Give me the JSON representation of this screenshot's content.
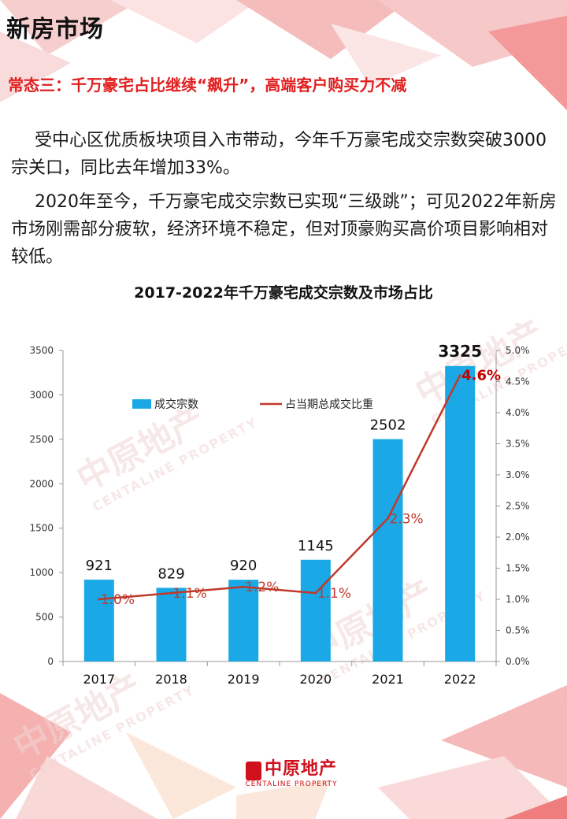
{
  "header": {
    "title": "新房市场",
    "subtitle": "常态三：千万豪宅占比继续“飙升”，高端客户购买力不减"
  },
  "body": {
    "paragraph1": "受中心区优质板块项目入市带动，今年千万豪宅成交宗数突破3000宗关口，同比去年增加33%。",
    "paragraph2": "2020年至今，千万豪宅成交宗数已实现“三级跳”；可见2022年新房市场刚需部分疲软，经济环境不稳定，但对顶豪购买高价项目影响相对较低。"
  },
  "watermark": {
    "cn": "中原地产",
    "en": "CENTALINE PROPERTY"
  },
  "footer": {
    "logo_cn": "中原地产",
    "logo_en": "CENTALINE PROPERTY"
  },
  "colors": {
    "bar": "#1aa9e6",
    "line": "#c0392b",
    "accent_red": "#e02020"
  },
  "chart_data": {
    "type": "bar",
    "title": "2017-2022年千万豪宅成交宗数及市场占比",
    "categories": [
      "2017",
      "2018",
      "2019",
      "2020",
      "2021",
      "2022"
    ],
    "series": [
      {
        "name": "成交宗数",
        "type": "bar",
        "axis": "left",
        "values": [
          921,
          829,
          920,
          1145,
          2502,
          3325
        ],
        "labels": [
          "921",
          "829",
          "920",
          "1145",
          "2502",
          "3325"
        ]
      },
      {
        "name": "占当期总成交比重",
        "type": "line",
        "axis": "right",
        "values": [
          1.0,
          1.1,
          1.2,
          1.1,
          2.3,
          4.6
        ],
        "labels": [
          "1.0%",
          "1.1%",
          "1.2%",
          "1.1%",
          "2.3%",
          "4.6%"
        ]
      }
    ],
    "y_left": {
      "min": 0,
      "max": 3500,
      "ticks": [
        "0",
        "500",
        "1000",
        "1500",
        "2000",
        "2500",
        "3000",
        "3500"
      ]
    },
    "y_right": {
      "min": 0,
      "max": 5.0,
      "ticks": [
        "0.0%",
        "0.5%",
        "1.0%",
        "1.5%",
        "2.0%",
        "2.5%",
        "3.0%",
        "3.5%",
        "4.0%",
        "4.5%",
        "5.0%"
      ]
    },
    "legend": {
      "position": "top-left",
      "items": [
        "成交宗数",
        "占当期总成交比重"
      ]
    },
    "grid": false
  }
}
